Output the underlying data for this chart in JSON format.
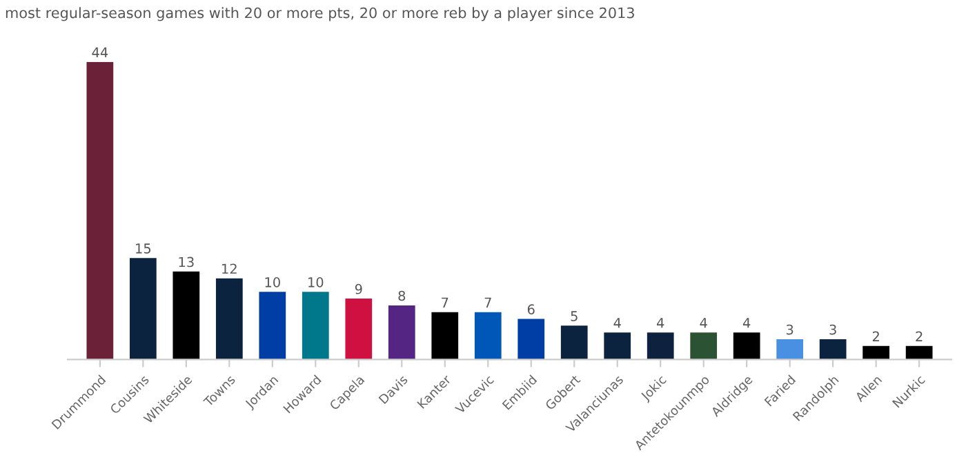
{
  "chart_data": {
    "type": "bar",
    "title": "most regular-season games with 20 or more pts, 20 or more reb by a player since 2013",
    "categories": [
      "Drummond",
      "Cousins",
      "Whiteside",
      "Towns",
      "Jordan",
      "Howard",
      "Capela",
      "Davis",
      "Kanter",
      "Vucevic",
      "Embiid",
      "Gobert",
      "Valanciunas",
      "Jokic",
      "Antetokounmpo",
      "Aldridge",
      "Faried",
      "Randolph",
      "Allen",
      "Nurkic"
    ],
    "values": [
      44,
      15,
      13,
      12,
      10,
      10,
      9,
      8,
      7,
      7,
      6,
      5,
      4,
      4,
      4,
      4,
      3,
      3,
      2,
      2
    ],
    "colors": [
      "#6b2238",
      "#0c2340",
      "#000000",
      "#0c2340",
      "#003da5",
      "#00788c",
      "#ce1141",
      "#552583",
      "#000000",
      "#0057b8",
      "#003da5",
      "#0c2340",
      "#0c2340",
      "#0e2240",
      "#2c5234",
      "#000000",
      "#4a90e2",
      "#0c2340",
      "#000000",
      "#000000"
    ],
    "data_labels": true,
    "grid": false,
    "legend": false,
    "tick_labels": "x"
  }
}
